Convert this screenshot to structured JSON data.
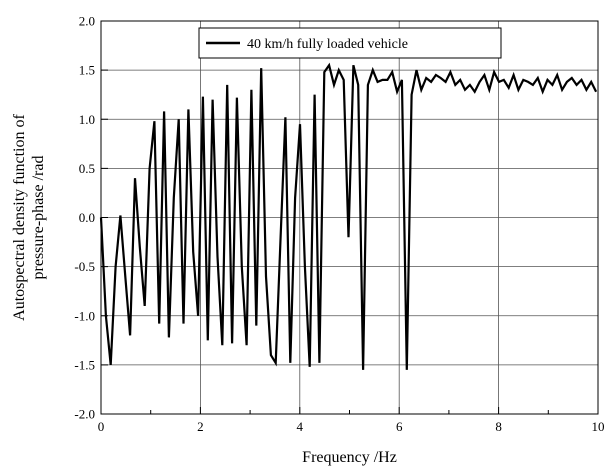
{
  "chart_data": {
    "type": "line",
    "title": "",
    "xlabel": "Frequency /Hz",
    "ylabel_lines": [
      "Autospectral density function of",
      "pressure-phase /rad"
    ],
    "xlim": [
      0,
      10
    ],
    "ylim": [
      -2.0,
      2.0
    ],
    "x_ticks": [
      0,
      2,
      4,
      6,
      8,
      10
    ],
    "x_tick_labels": [
      "0",
      "2",
      "4",
      "6",
      "8",
      "10"
    ],
    "y_ticks": [
      -2.0,
      -1.5,
      -1.0,
      -0.5,
      0.0,
      0.5,
      1.0,
      1.5,
      2.0
    ],
    "y_tick_labels": [
      "-2.0",
      "-1.5",
      "-1.0",
      "-0.5",
      "0.0",
      "0.5",
      "1.0",
      "1.5",
      "2.0"
    ],
    "grid": true,
    "legend_position": "top-center",
    "series": [
      {
        "name": "40 km/h fully loaded vehicle",
        "color": "#000000",
        "x": [
          0.0,
          0.098,
          0.195,
          0.293,
          0.391,
          0.488,
          0.586,
          0.684,
          0.781,
          0.879,
          0.977,
          1.074,
          1.172,
          1.27,
          1.367,
          1.465,
          1.563,
          1.66,
          1.758,
          1.855,
          1.953,
          2.051,
          2.148,
          2.246,
          2.344,
          2.441,
          2.539,
          2.637,
          2.734,
          2.832,
          2.93,
          3.027,
          3.125,
          3.223,
          3.32,
          3.418,
          3.516,
          3.613,
          3.711,
          3.809,
          3.906,
          4.004,
          4.102,
          4.199,
          4.297,
          4.395,
          4.492,
          4.59,
          4.688,
          4.785,
          4.883,
          4.98,
          5.078,
          5.176,
          5.273,
          5.371,
          5.469,
          5.566,
          5.664,
          5.762,
          5.859,
          5.957,
          6.055,
          6.152,
          6.25,
          6.348,
          6.445,
          6.543,
          6.641,
          6.738,
          6.836,
          6.934,
          7.031,
          7.129,
          7.227,
          7.324,
          7.422,
          7.52,
          7.617,
          7.715,
          7.813,
          7.91,
          8.008,
          8.105,
          8.203,
          8.301,
          8.398,
          8.496,
          8.594,
          8.691,
          8.789,
          8.887,
          8.984,
          9.082,
          9.18,
          9.277,
          9.375,
          9.473,
          9.57,
          9.668,
          9.766,
          9.863,
          9.961
        ],
        "y": [
          0.0,
          -1.0,
          -1.5,
          -0.5,
          0.02,
          -0.6,
          -1.2,
          0.4,
          -0.3,
          -0.9,
          0.5,
          0.98,
          -1.08,
          1.08,
          -1.22,
          0.2,
          1.0,
          -1.08,
          1.1,
          -0.35,
          -1.0,
          1.23,
          -1.25,
          1.2,
          -0.4,
          -1.3,
          1.35,
          -1.28,
          1.22,
          -0.5,
          -1.3,
          1.3,
          -1.1,
          1.52,
          -0.6,
          -1.4,
          -1.48,
          -0.2,
          1.02,
          -1.48,
          0.2,
          0.95,
          -0.5,
          -1.52,
          1.25,
          -1.48,
          1.48,
          1.55,
          1.35,
          1.5,
          1.4,
          -0.2,
          1.55,
          1.35,
          -1.55,
          1.35,
          1.5,
          1.38,
          1.4,
          1.4,
          1.48,
          1.28,
          1.4,
          -1.55,
          1.25,
          1.5,
          1.3,
          1.42,
          1.38,
          1.45,
          1.42,
          1.38,
          1.48,
          1.35,
          1.4,
          1.3,
          1.35,
          1.28,
          1.38,
          1.45,
          1.3,
          1.48,
          1.38,
          1.4,
          1.32,
          1.45,
          1.3,
          1.4,
          1.38,
          1.35,
          1.42,
          1.28,
          1.4,
          1.35,
          1.45,
          1.3,
          1.38,
          1.42,
          1.35,
          1.4,
          1.3,
          1.38,
          1.28
        ]
      }
    ]
  }
}
